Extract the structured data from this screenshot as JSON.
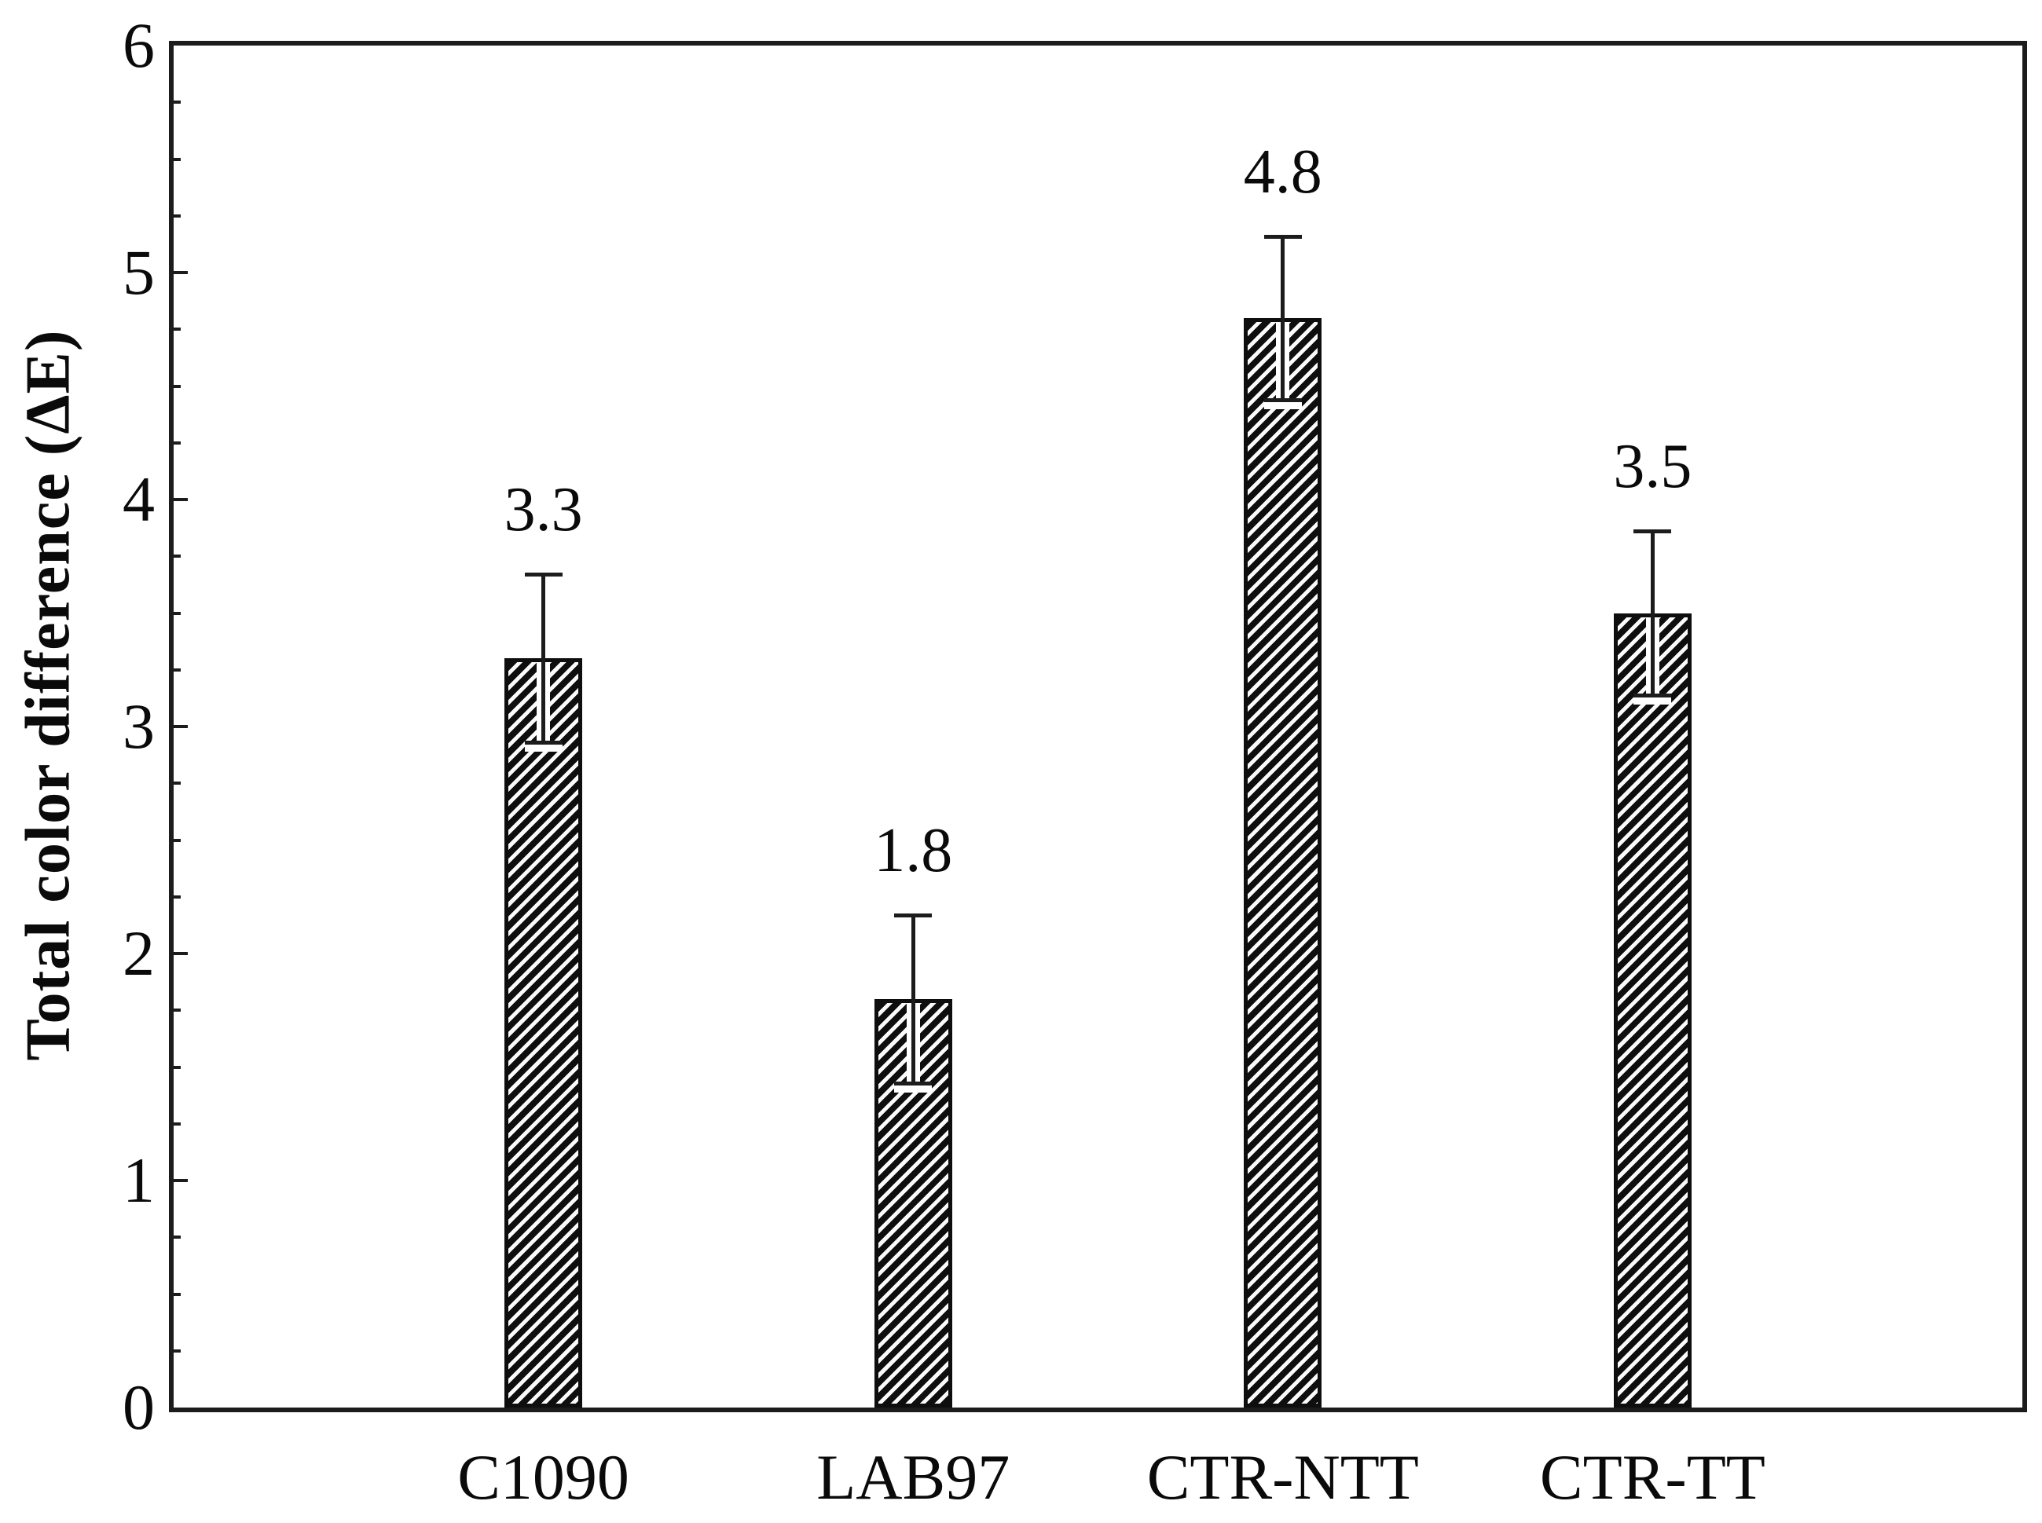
{
  "figure": {
    "background": "#ffffff"
  },
  "colors": {
    "axis": "#1c1c1c",
    "text": "#0a0a0a",
    "hatch_line": "#0e0e0e",
    "hatch_bg": "#fafafa",
    "error_bar": "#1c1c1c"
  },
  "chart_data": {
    "type": "bar",
    "title": "",
    "xlabel": "",
    "ylabel": "Total color difference (ΔE)",
    "categories": [
      "C1090",
      "LAB97",
      "CTR-NTT",
      "CTR-TT"
    ],
    "values": [
      3.3,
      1.8,
      4.8,
      3.5
    ],
    "value_labels": [
      "3.3",
      "1.8",
      "4.8",
      "3.5"
    ],
    "error_bars": [
      0.37,
      0.37,
      0.36,
      0.36
    ],
    "ylim": [
      0,
      6
    ],
    "y_major_ticks": [
      0,
      1,
      2,
      3,
      4,
      5,
      6
    ],
    "y_tick_labels": [
      "0",
      "1",
      "2",
      "3",
      "4",
      "5",
      "6"
    ],
    "y_minor_tick_step": 0.25,
    "grid": false,
    "legend": false,
    "bar_fill": "black-diagonal-hatch",
    "frame": "full-box",
    "error_bar_style": "both-ends-with-caps"
  }
}
